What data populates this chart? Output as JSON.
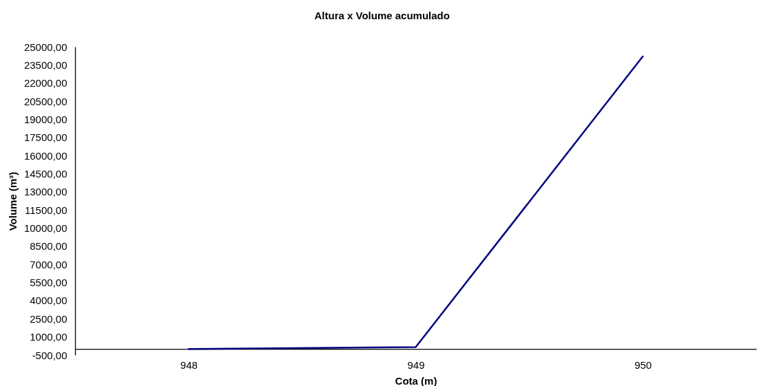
{
  "chart_data": {
    "type": "line",
    "title": "Altura x Volume acumulado",
    "xlabel": "Cota (m)",
    "ylabel": "Volume (m³)",
    "categories": [
      "948",
      "949",
      "950"
    ],
    "series": [
      {
        "color": "#000080",
        "values": [
          0,
          150,
          24200
        ]
      }
    ],
    "ylim": [
      -500,
      25000
    ],
    "yticks": [
      {
        "value": -500,
        "label": "-500,00"
      },
      {
        "value": 1000,
        "label": "1000,00"
      },
      {
        "value": 2500,
        "label": "2500,00"
      },
      {
        "value": 4000,
        "label": "4000,00"
      },
      {
        "value": 5500,
        "label": "5500,00"
      },
      {
        "value": 7000,
        "label": "7000,00"
      },
      {
        "value": 8500,
        "label": "8500,00"
      },
      {
        "value": 10000,
        "label": "10000,00"
      },
      {
        "value": 11500,
        "label": "11500,00"
      },
      {
        "value": 13000,
        "label": "13000,00"
      },
      {
        "value": 14500,
        "label": "14500,00"
      },
      {
        "value": 16000,
        "label": "16000,00"
      },
      {
        "value": 17500,
        "label": "17500,00"
      },
      {
        "value": 19000,
        "label": "19000,00"
      },
      {
        "value": 20500,
        "label": "20500,00"
      },
      {
        "value": 22000,
        "label": "22000,00"
      },
      {
        "value": 23500,
        "label": "23500,00"
      },
      {
        "value": 25000,
        "label": "25000,00"
      }
    ]
  }
}
